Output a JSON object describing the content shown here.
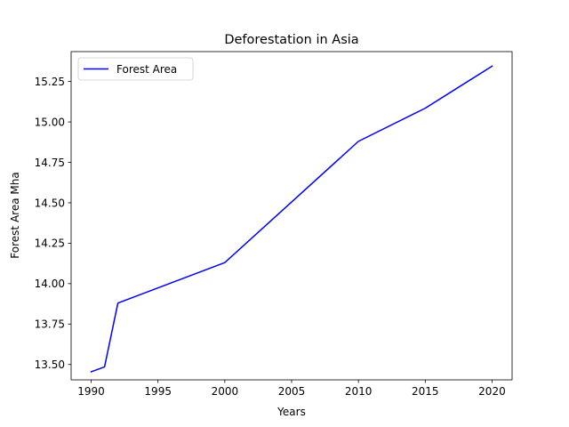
{
  "chart_data": {
    "type": "line",
    "title": "Deforestation in Asia",
    "xlabel": "Years",
    "ylabel": "Forest Area Mha",
    "xlim": [
      1988.5,
      2021.5
    ],
    "ylim": [
      13.405,
      15.435
    ],
    "xticks": [
      1990,
      1995,
      2000,
      2005,
      2010,
      2015,
      2020
    ],
    "xtick_labels": [
      "1990",
      "1995",
      "2000",
      "2005",
      "2010",
      "2015",
      "2020"
    ],
    "yticks": [
      13.5,
      13.75,
      14.0,
      14.25,
      14.5,
      14.75,
      15.0,
      15.25
    ],
    "ytick_labels": [
      "13.50",
      "13.75",
      "14.00",
      "14.25",
      "14.50",
      "14.75",
      "15.00",
      "15.25"
    ],
    "grid": false,
    "legend_position": "upper-left",
    "series": [
      {
        "name": "Forest Area",
        "color": "#0000ff",
        "x": [
          1990,
          1991,
          1992,
          2000,
          2010,
          2015,
          2020
        ],
        "y": [
          13.455,
          13.485,
          13.88,
          14.13,
          14.88,
          15.085,
          15.345
        ]
      }
    ]
  }
}
